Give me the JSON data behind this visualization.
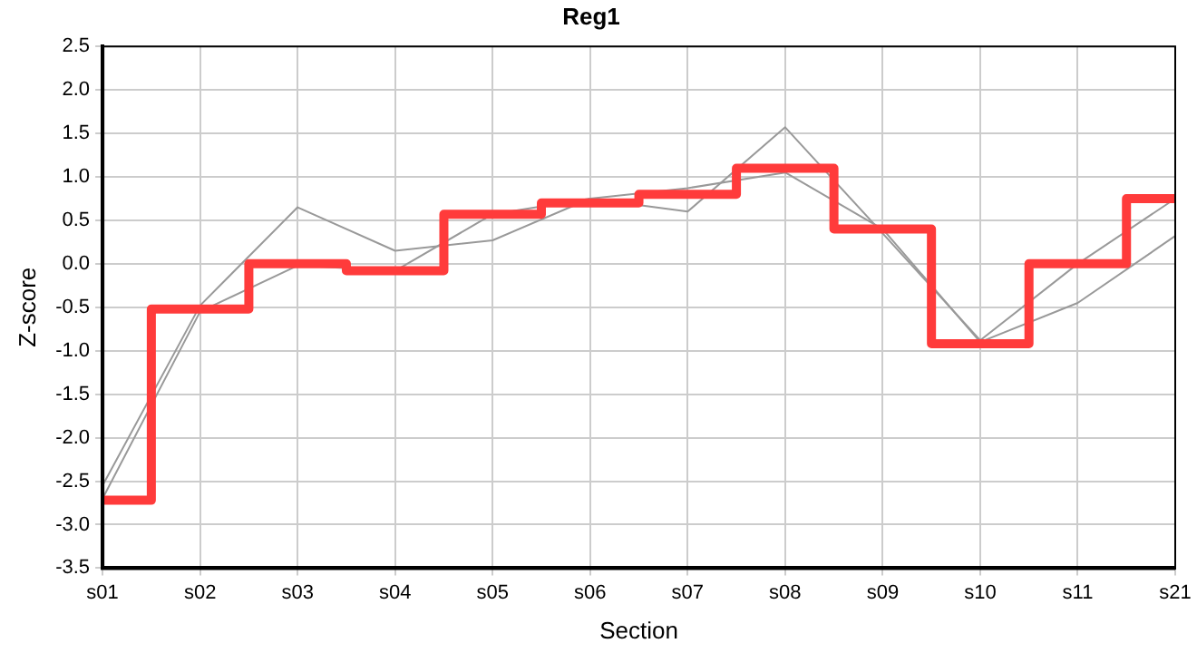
{
  "chart_data": {
    "type": "line",
    "title": "Reg1",
    "xlabel": "Section",
    "ylabel": "Z-score",
    "categories": [
      "s01",
      "s02",
      "s03",
      "s04",
      "s05",
      "s06",
      "s07",
      "s08",
      "s09",
      "s10",
      "s11",
      "s21"
    ],
    "series": [
      {
        "color": "#999999",
        "values": [
          -2.55,
          -0.48,
          0.65,
          0.15,
          0.27,
          0.75,
          0.6,
          1.57,
          0.35,
          -0.88,
          0.0,
          0.75
        ]
      },
      {
        "color": "#999999",
        "values": [
          -2.7,
          -0.55,
          -0.02,
          -0.08,
          0.57,
          0.75,
          0.87,
          1.05,
          0.4,
          -0.9,
          -0.45,
          0.32
        ]
      },
      {
        "type": "step",
        "color": "#ff3b3b",
        "values": [
          -2.72,
          -0.52,
          0.0,
          -0.08,
          0.57,
          0.7,
          0.8,
          1.1,
          0.4,
          -0.92,
          0.0,
          0.75
        ]
      }
    ],
    "ylim": [
      -3.5,
      2.5
    ],
    "yticks": [
      -3.5,
      {
        "value": -3,
        "label": "-3.0"
      },
      -2.5,
      {
        "value": -2,
        "label": "-2.0"
      },
      -1.5,
      {
        "value": -1,
        "label": "-1.0"
      },
      -0.5,
      {
        "value": 0,
        "label": "0.0"
      },
      0.5,
      {
        "value": 1,
        "label": "1.0"
      },
      1.5,
      {
        "value": 2,
        "label": "2.0"
      },
      2.5
    ],
    "grid": true,
    "legend": false
  }
}
